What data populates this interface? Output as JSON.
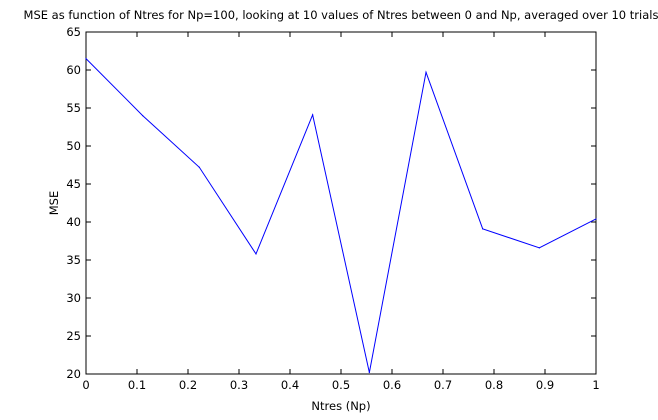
{
  "chart_data": {
    "type": "line",
    "title": "MSE as function of Ntres for Np=100, looking at 10 values of Ntres between 0 and Np, averaged over 10 trials",
    "xlabel": "Ntres (Np)",
    "ylabel": "MSE",
    "xlim": [
      0,
      1
    ],
    "ylim": [
      20,
      65
    ],
    "xticks": [
      0,
      0.1,
      0.2,
      0.3,
      0.4,
      0.5,
      0.6,
      0.7,
      0.8,
      0.9,
      1
    ],
    "xtick_labels": [
      "0",
      "0.1",
      "0.2",
      "0.3",
      "0.4",
      "0.5",
      "0.6",
      "0.7",
      "0.8",
      "0.9",
      "1"
    ],
    "yticks": [
      20,
      25,
      30,
      35,
      40,
      45,
      50,
      55,
      60,
      65
    ],
    "ytick_labels": [
      "20",
      "25",
      "30",
      "35",
      "40",
      "45",
      "50",
      "55",
      "60",
      "65"
    ],
    "grid": false,
    "line_color": "#0000ff",
    "series": [
      {
        "x": [
          0,
          0.1111,
          0.2222,
          0.3333,
          0.4444,
          0.5556,
          0.6667,
          0.7778,
          0.8889,
          1.0
        ],
        "values": [
          61.5,
          54.0,
          47.2,
          35.8,
          54.1,
          20.2,
          59.7,
          39.1,
          36.6,
          40.4
        ]
      }
    ]
  }
}
